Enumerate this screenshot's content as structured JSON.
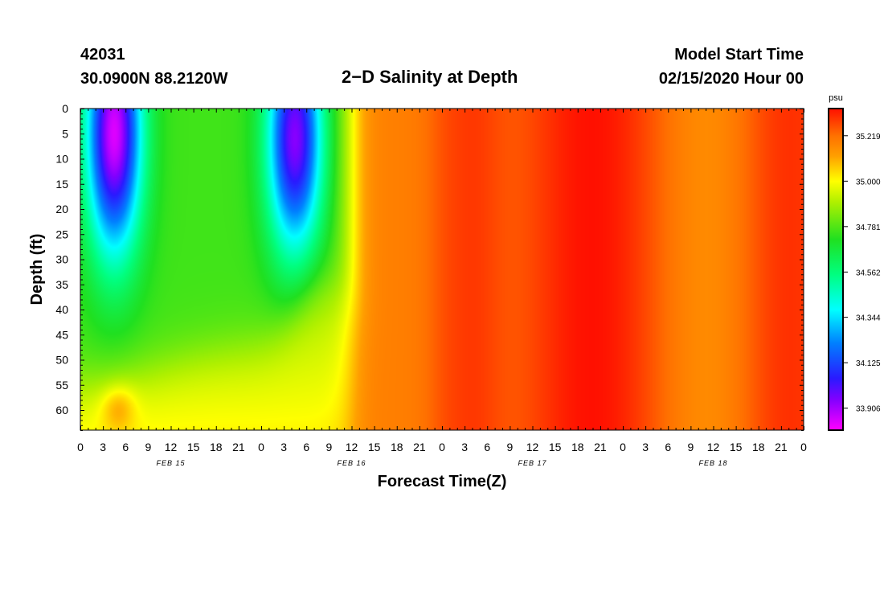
{
  "header": {
    "station_id": "42031",
    "location": "30.0900N 88.2120W",
    "title": "2−D Salinity at Depth",
    "start_label": "Model Start Time",
    "start_value": "02/15/2020 Hour 00"
  },
  "chart_data": {
    "type": "heatmap",
    "title": "2−D Salinity at Depth",
    "xlabel": "Forecast Time(Z)",
    "ylabel": "Depth (ft)",
    "x_tick_labels": [
      "0",
      "3",
      "6",
      "9",
      "12",
      "15",
      "18",
      "21",
      "0",
      "3",
      "6",
      "9",
      "12",
      "15",
      "18",
      "21",
      "0",
      "3",
      "6",
      "9",
      "12",
      "15",
      "18",
      "21",
      "0",
      "3",
      "6",
      "9",
      "12",
      "15",
      "18",
      "21",
      "0"
    ],
    "x_hours": [
      0,
      3,
      6,
      9,
      12,
      15,
      18,
      21,
      24,
      27,
      30,
      33,
      36,
      39,
      42,
      45,
      48,
      51,
      54,
      57,
      60,
      63,
      66,
      69,
      72,
      75,
      78,
      81,
      84,
      87,
      90,
      93,
      96
    ],
    "xlim_hours": [
      0,
      96
    ],
    "date_labels": [
      {
        "text": "FEB 15",
        "hour": 12
      },
      {
        "text": "FEB 16",
        "hour": 36
      },
      {
        "text": "FEB 17",
        "hour": 60
      },
      {
        "text": "FEB 18",
        "hour": 84
      }
    ],
    "y_ticks": [
      0,
      5,
      10,
      15,
      20,
      25,
      30,
      35,
      40,
      45,
      50,
      55,
      60
    ],
    "ylim": [
      0,
      64
    ],
    "y_inverted": true,
    "colorbar": {
      "unit": "psu",
      "tick_values": [
        35.219,
        35.0,
        34.781,
        34.562,
        34.344,
        34.125,
        33.906
      ],
      "tick_labels": [
        "35.219",
        "35.000",
        "34.781",
        "34.562",
        "34.344",
        "34.125",
        "33.906"
      ],
      "range": [
        33.8,
        35.35
      ],
      "stops": [
        {
          "v": 33.8,
          "color": "#ff00ff"
        },
        {
          "v": 33.95,
          "color": "#8000ff"
        },
        {
          "v": 34.05,
          "color": "#2a1aff"
        },
        {
          "v": 34.22,
          "color": "#0080ff"
        },
        {
          "v": 34.38,
          "color": "#00ffff"
        },
        {
          "v": 34.55,
          "color": "#00ff80"
        },
        {
          "v": 34.72,
          "color": "#20e020"
        },
        {
          "v": 34.9,
          "color": "#b0f000"
        },
        {
          "v": 35.0,
          "color": "#ffff00"
        },
        {
          "v": 35.12,
          "color": "#ffa000"
        },
        {
          "v": 35.22,
          "color": "#ff7000"
        },
        {
          "v": 35.35,
          "color": "#ff1000"
        }
      ]
    },
    "notes": "Values estimated from color; low-salinity (~33.9 psu) pockets near surface around hours 3-6 and 27-30; uniform ~35.2-35.35 psu after hour 36."
  }
}
